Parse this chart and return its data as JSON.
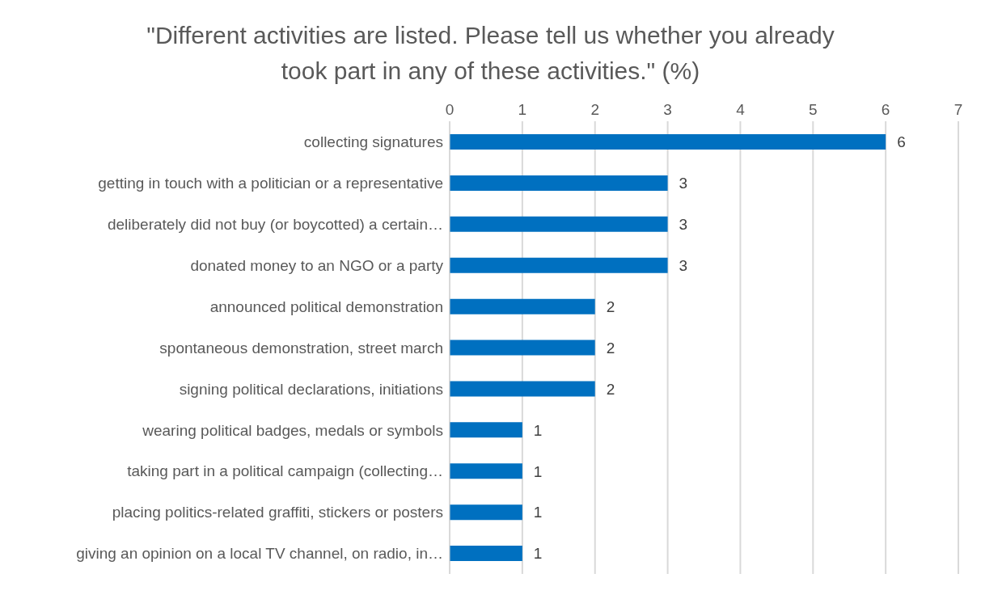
{
  "chart_data": {
    "type": "bar",
    "orientation": "horizontal",
    "title": "\"Different activities are listed. Please tell us whether you already took part in any of these activities.\" (%)",
    "categories": [
      "collecting signatures",
      "getting in touch with a politician or a representative",
      "deliberately did not buy (or boycotted) a certain…",
      "donated money to an NGO or a party",
      "announced political demonstration",
      "spontaneous demonstration, street march",
      "signing political declarations, initiations",
      "wearing political badges, medals or symbols",
      "taking part in a political campaign (collecting…",
      "placing politics-related graffiti, stickers or posters",
      "giving an opinion on a local TV channel, on radio, in…"
    ],
    "values": [
      6,
      3,
      3,
      3,
      2,
      2,
      2,
      1,
      1,
      1,
      1
    ],
    "color": "#0070c0",
    "xlim": [
      0,
      7
    ],
    "xticks": [
      0,
      1,
      2,
      3,
      4,
      5,
      6,
      7
    ],
    "grid": "x",
    "data_labels": true
  }
}
